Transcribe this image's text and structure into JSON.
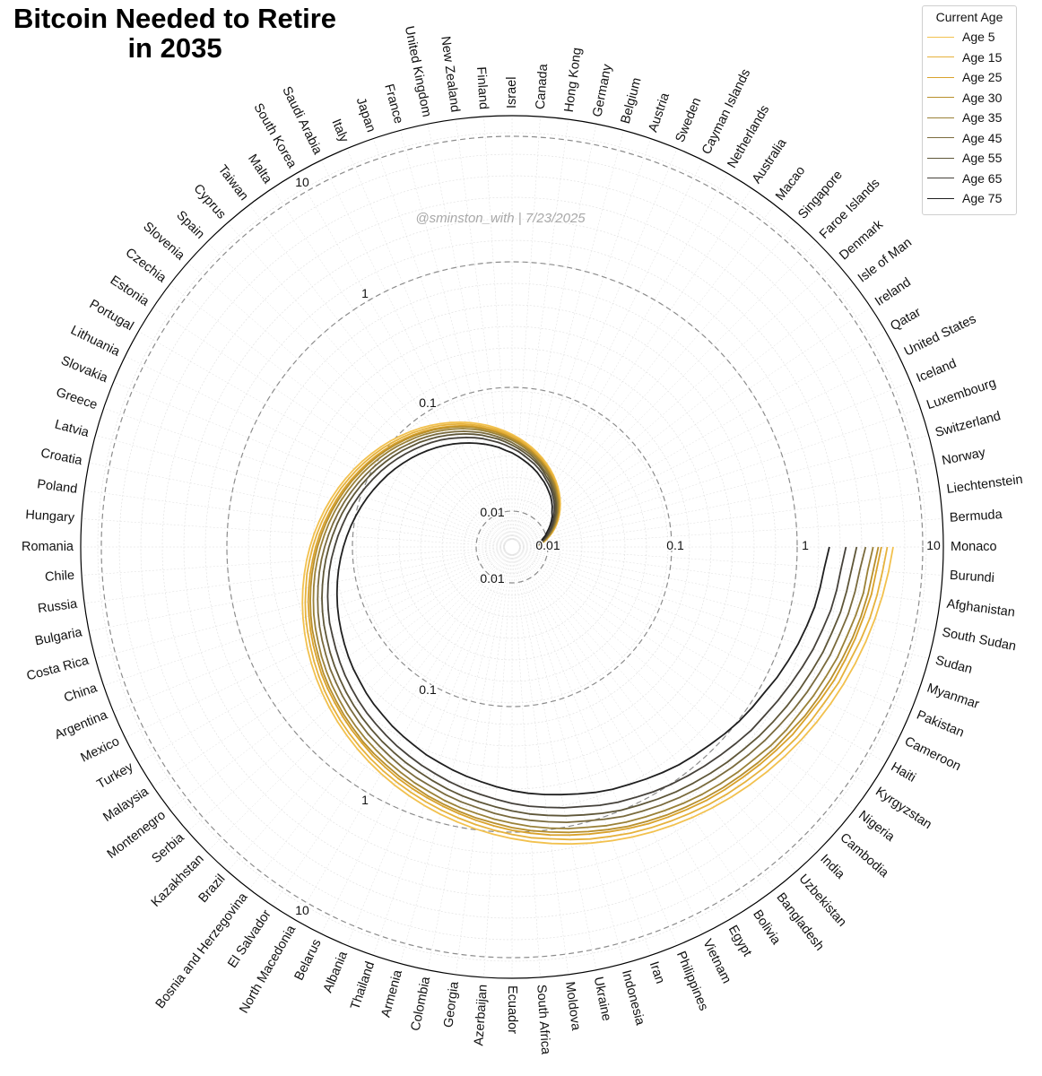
{
  "title_lines": [
    "Bitcoin Needed to Retire",
    "in 2035"
  ],
  "watermark": "@sminston_with  |  7/23/2025",
  "legend_title": "Current Age",
  "colors": {
    "grid_ring": "#8c8c8c",
    "grid_fine": "#dedede",
    "outer_circle": "#000000",
    "watermark": "#a8a8a8"
  },
  "chart_data": {
    "type": "line",
    "projection": "polar-spiral",
    "scale": "log",
    "rlim": [
      0.001,
      30
    ],
    "ring_values": [
      0.01,
      0.1,
      1,
      10
    ],
    "ring_labels": [
      "0.01",
      "0.1",
      "1",
      "10"
    ],
    "categories": [
      "Monaco",
      "Bermuda",
      "Liechtenstein",
      "Norway",
      "Switzerland",
      "Luxembourg",
      "Iceland",
      "United States",
      "Qatar",
      "Ireland",
      "Isle of Man",
      "Denmark",
      "Faroe Islands",
      "Singapore",
      "Macao",
      "Australia",
      "Netherlands",
      "Cayman Islands",
      "Sweden",
      "Austria",
      "Belgium",
      "Germany",
      "Hong Kong",
      "Canada",
      "Israel",
      "Finland",
      "New Zealand",
      "United Kingdom",
      "France",
      "Japan",
      "Italy",
      "Saudi Arabia",
      "South Korea",
      "Malta",
      "Taiwan",
      "Cyprus",
      "Spain",
      "Slovenia",
      "Czechia",
      "Estonia",
      "Portugal",
      "Lithuania",
      "Slovakia",
      "Greece",
      "Latvia",
      "Croatia",
      "Poland",
      "Hungary",
      "Romania",
      "Chile",
      "Russia",
      "Bulgaria",
      "Costa Rica",
      "China",
      "Argentina",
      "Mexico",
      "Turkey",
      "Malaysia",
      "Montenegro",
      "Serbia",
      "Kazakhstan",
      "Brazil",
      "Bosnia and Herzegovina",
      "El Salvador",
      "North Macedonia",
      "Belarus",
      "Albania",
      "Thailand",
      "Armenia",
      "Colombia",
      "Georgia",
      "Azerbaijan",
      "Ecuador",
      "South Africa",
      "Moldova",
      "Ukraine",
      "Indonesia",
      "Iran",
      "Philippines",
      "Vietnam",
      "Egypt",
      "Bolivia",
      "Bangladesh",
      "Uzbekistan",
      "India",
      "Cambodia",
      "Nigeria",
      "Kyrgyzstan",
      "Haiti",
      "Cameroon",
      "Pakistan",
      "Myanmar",
      "Sudan",
      "South Sudan",
      "Afghanistan",
      "Burundi"
    ],
    "series": [
      {
        "name": "Age 5",
        "color": "#f2c14e",
        "values": [
          14.0,
          13.3,
          12.1,
          10.5,
          9.6,
          8.5,
          7.6,
          6.6,
          5.8,
          5.0,
          4.3,
          3.8,
          3.3,
          2.9,
          2.5,
          2.2,
          1.95,
          1.75,
          1.57,
          1.43,
          1.31,
          1.21,
          1.13,
          1.06,
          1.01,
          0.98,
          0.96,
          0.95,
          0.95,
          0.96,
          0.98,
          1.01,
          1.05,
          1.08,
          1.1,
          1.11,
          1.11,
          1.09,
          1.06,
          1.02,
          0.98,
          0.93,
          0.88,
          0.82,
          0.77,
          0.72,
          0.67,
          0.62,
          0.58,
          0.54,
          0.5,
          0.47,
          0.44,
          0.41,
          0.39,
          0.37,
          0.35,
          0.33,
          0.31,
          0.29,
          0.27,
          0.255,
          0.24,
          0.225,
          0.21,
          0.195,
          0.18,
          0.168,
          0.156,
          0.144,
          0.132,
          0.122,
          0.112,
          0.104,
          0.096,
          0.089,
          0.082,
          0.075,
          0.069,
          0.063,
          0.058,
          0.053,
          0.049,
          0.046,
          0.043,
          0.041,
          0.038,
          0.035,
          0.032,
          0.029,
          0.026,
          0.023,
          0.02,
          0.017,
          0.014,
          0.011
        ]
      },
      {
        "name": "Age 15",
        "color": "#e6b23c",
        "values": [
          13.4,
          12.7,
          11.6,
          10.1,
          9.2,
          8.1,
          7.3,
          6.3,
          5.55,
          4.8,
          4.12,
          3.64,
          3.16,
          2.78,
          2.4,
          2.11,
          1.87,
          1.68,
          1.51,
          1.37,
          1.26,
          1.16,
          1.08,
          1.02,
          0.97,
          0.94,
          0.92,
          0.91,
          0.91,
          0.92,
          0.94,
          0.97,
          1.01,
          1.04,
          1.06,
          1.07,
          1.07,
          1.05,
          1.02,
          0.98,
          0.94,
          0.89,
          0.845,
          0.79,
          0.74,
          0.69,
          0.645,
          0.595,
          0.557,
          0.518,
          0.48,
          0.451,
          0.422,
          0.394,
          0.374,
          0.355,
          0.336,
          0.317,
          0.298,
          0.278,
          0.259,
          0.245,
          0.23,
          0.216,
          0.202,
          0.187,
          0.173,
          0.161,
          0.15,
          0.138,
          0.127,
          0.117,
          0.108,
          0.1,
          0.092,
          0.085,
          0.079,
          0.072,
          0.066,
          0.06,
          0.056,
          0.051,
          0.047,
          0.044,
          0.041,
          0.039,
          0.036,
          0.034,
          0.031,
          0.028,
          0.025,
          0.022,
          0.019,
          0.016,
          0.013,
          0.011
        ]
      },
      {
        "name": "Age 25",
        "color": "#d9a22b",
        "values": [
          12.8,
          12.1,
          11.1,
          9.6,
          8.8,
          7.8,
          7.0,
          6.05,
          5.3,
          4.6,
          3.94,
          3.48,
          3.02,
          2.66,
          2.3,
          2.02,
          1.79,
          1.61,
          1.44,
          1.31,
          1.2,
          1.11,
          1.04,
          0.975,
          0.93,
          0.9,
          0.88,
          0.87,
          0.87,
          0.88,
          0.9,
          0.93,
          0.965,
          0.995,
          1.01,
          1.02,
          1.02,
          1.0,
          0.975,
          0.94,
          0.9,
          0.855,
          0.81,
          0.755,
          0.71,
          0.662,
          0.617,
          0.57,
          0.534,
          0.497,
          0.46,
          0.432,
          0.405,
          0.377,
          0.359,
          0.34,
          0.322,
          0.304,
          0.285,
          0.267,
          0.248,
          0.235,
          0.221,
          0.207,
          0.193,
          0.179,
          0.166,
          0.155,
          0.144,
          0.132,
          0.122,
          0.112,
          0.103,
          0.096,
          0.088,
          0.082,
          0.075,
          0.069,
          0.063,
          0.058,
          0.053,
          0.049,
          0.045,
          0.042,
          0.04,
          0.038,
          0.035,
          0.032,
          0.03,
          0.027,
          0.024,
          0.021,
          0.018,
          0.016,
          0.013,
          0.01
        ]
      },
      {
        "name": "Age 30",
        "color": "#b88f2c",
        "values": [
          12.5,
          11.8,
          10.8,
          9.4,
          8.6,
          7.6,
          6.8,
          5.9,
          5.2,
          4.45,
          3.85,
          3.4,
          2.95,
          2.6,
          2.24,
          1.97,
          1.75,
          1.57,
          1.41,
          1.28,
          1.17,
          1.08,
          1.01,
          0.95,
          0.905,
          0.875,
          0.86,
          0.85,
          0.85,
          0.86,
          0.875,
          0.905,
          0.94,
          0.97,
          0.99,
          0.995,
          0.995,
          0.975,
          0.95,
          0.915,
          0.875,
          0.83,
          0.79,
          0.735,
          0.69,
          0.645,
          0.6,
          0.555,
          0.52,
          0.484,
          0.448,
          0.421,
          0.394,
          0.367,
          0.35,
          0.331,
          0.314,
          0.296,
          0.278,
          0.26,
          0.242,
          0.229,
          0.215,
          0.202,
          0.188,
          0.175,
          0.162,
          0.151,
          0.14,
          0.129,
          0.118,
          0.109,
          0.1,
          0.093,
          0.086,
          0.08,
          0.073,
          0.067,
          0.062,
          0.056,
          0.052,
          0.048,
          0.044,
          0.041,
          0.039,
          0.037,
          0.034,
          0.031,
          0.029,
          0.026,
          0.023,
          0.021,
          0.018,
          0.015,
          0.013,
          0.01
        ]
      },
      {
        "name": "Age 35",
        "color": "#9a8137",
        "values": [
          12.0,
          11.3,
          10.4,
          9.0,
          8.2,
          7.3,
          6.5,
          5.65,
          4.95,
          4.3,
          3.7,
          3.25,
          2.83,
          2.49,
          2.15,
          1.89,
          1.67,
          1.5,
          1.35,
          1.23,
          1.12,
          1.04,
          0.97,
          0.91,
          0.865,
          0.84,
          0.82,
          0.815,
          0.815,
          0.82,
          0.84,
          0.865,
          0.9,
          0.925,
          0.945,
          0.955,
          0.955,
          0.935,
          0.91,
          0.875,
          0.84,
          0.795,
          0.755,
          0.705,
          0.66,
          0.617,
          0.575,
          0.532,
          0.497,
          0.463,
          0.429,
          0.403,
          0.377,
          0.351,
          0.334,
          0.317,
          0.3,
          0.283,
          0.266,
          0.249,
          0.231,
          0.219,
          0.206,
          0.193,
          0.18,
          0.167,
          0.155,
          0.144,
          0.134,
          0.123,
          0.113,
          0.104,
          0.096,
          0.089,
          0.082,
          0.076,
          0.07,
          0.064,
          0.059,
          0.054,
          0.05,
          0.046,
          0.042,
          0.039,
          0.037,
          0.035,
          0.033,
          0.03,
          0.027,
          0.025,
          0.022,
          0.02,
          0.017,
          0.015,
          0.012,
          0.01
        ]
      },
      {
        "name": "Age 45",
        "color": "#7a6b3d",
        "values": [
          11.3,
          10.6,
          9.7,
          8.45,
          7.7,
          6.85,
          6.1,
          5.3,
          4.65,
          4.0,
          3.45,
          3.05,
          2.65,
          2.33,
          2.01,
          1.77,
          1.57,
          1.41,
          1.27,
          1.15,
          1.05,
          0.975,
          0.91,
          0.855,
          0.815,
          0.79,
          0.77,
          0.765,
          0.765,
          0.77,
          0.79,
          0.815,
          0.845,
          0.87,
          0.89,
          0.895,
          0.895,
          0.88,
          0.855,
          0.825,
          0.79,
          0.75,
          0.71,
          0.662,
          0.62,
          0.58,
          0.54,
          0.5,
          0.467,
          0.435,
          0.403,
          0.379,
          0.355,
          0.33,
          0.314,
          0.298,
          0.282,
          0.266,
          0.25,
          0.234,
          0.217,
          0.206,
          0.194,
          0.182,
          0.169,
          0.157,
          0.145,
          0.135,
          0.126,
          0.116,
          0.106,
          0.098,
          0.09,
          0.083,
          0.077,
          0.072,
          0.066,
          0.06,
          0.055,
          0.051,
          0.047,
          0.043,
          0.04,
          0.037,
          0.035,
          0.033,
          0.031,
          0.028,
          0.026,
          0.023,
          0.021,
          0.018,
          0.016,
          0.014,
          0.012,
          0.009
        ]
      },
      {
        "name": "Age 55",
        "color": "#5e5638",
        "values": [
          10.5,
          9.9,
          9.05,
          7.9,
          7.2,
          6.4,
          5.7,
          4.95,
          4.35,
          3.75,
          3.23,
          2.85,
          2.48,
          2.18,
          1.88,
          1.66,
          1.47,
          1.32,
          1.19,
          1.08,
          0.985,
          0.91,
          0.85,
          0.8,
          0.76,
          0.735,
          0.72,
          0.715,
          0.715,
          0.72,
          0.735,
          0.76,
          0.79,
          0.815,
          0.83,
          0.84,
          0.84,
          0.825,
          0.8,
          0.77,
          0.74,
          0.7,
          0.665,
          0.62,
          0.582,
          0.543,
          0.506,
          0.468,
          0.437,
          0.407,
          0.377,
          0.355,
          0.332,
          0.309,
          0.294,
          0.279,
          0.264,
          0.249,
          0.234,
          0.219,
          0.203,
          0.193,
          0.181,
          0.17,
          0.158,
          0.147,
          0.136,
          0.127,
          0.118,
          0.108,
          0.1,
          0.092,
          0.084,
          0.078,
          0.072,
          0.067,
          0.062,
          0.057,
          0.052,
          0.047,
          0.044,
          0.04,
          0.037,
          0.035,
          0.033,
          0.031,
          0.029,
          0.026,
          0.024,
          0.022,
          0.019,
          0.017,
          0.015,
          0.013,
          0.011,
          0.009
        ]
      },
      {
        "name": "Age 65",
        "color": "#45413a",
        "values": [
          9.6,
          9.05,
          8.3,
          7.25,
          6.6,
          5.85,
          5.2,
          4.5,
          3.95,
          3.4,
          2.95,
          2.6,
          2.26,
          1.99,
          1.72,
          1.52,
          1.35,
          1.21,
          1.09,
          0.99,
          0.9,
          0.835,
          0.78,
          0.735,
          0.7,
          0.675,
          0.66,
          0.655,
          0.655,
          0.66,
          0.675,
          0.695,
          0.725,
          0.745,
          0.76,
          0.77,
          0.77,
          0.755,
          0.735,
          0.705,
          0.675,
          0.64,
          0.61,
          0.568,
          0.533,
          0.498,
          0.464,
          0.429,
          0.4,
          0.373,
          0.345,
          0.325,
          0.304,
          0.283,
          0.269,
          0.255,
          0.242,
          0.228,
          0.214,
          0.2,
          0.186,
          0.176,
          0.166,
          0.156,
          0.145,
          0.134,
          0.124,
          0.116,
          0.108,
          0.099,
          0.091,
          0.084,
          0.077,
          0.072,
          0.066,
          0.061,
          0.057,
          0.052,
          0.048,
          0.043,
          0.04,
          0.037,
          0.034,
          0.032,
          0.03,
          0.028,
          0.026,
          0.024,
          0.022,
          0.02,
          0.018,
          0.016,
          0.014,
          0.012,
          0.01,
          0.009
        ]
      },
      {
        "name": "Age 75",
        "color": "#1f1f1f",
        "values": [
          8.3,
          7.8,
          7.15,
          6.25,
          5.7,
          5.05,
          4.5,
          3.9,
          3.4,
          2.95,
          2.55,
          2.25,
          1.95,
          1.72,
          1.49,
          1.31,
          1.16,
          1.04,
          0.94,
          0.855,
          0.78,
          0.72,
          0.675,
          0.635,
          0.605,
          0.585,
          0.57,
          0.565,
          0.565,
          0.57,
          0.585,
          0.6,
          0.625,
          0.645,
          0.655,
          0.665,
          0.665,
          0.65,
          0.635,
          0.61,
          0.585,
          0.555,
          0.525,
          0.49,
          0.46,
          0.43,
          0.4,
          0.37,
          0.346,
          0.322,
          0.298,
          0.28,
          0.262,
          0.244,
          0.232,
          0.22,
          0.209,
          0.197,
          0.185,
          0.173,
          0.161,
          0.152,
          0.143,
          0.134,
          0.125,
          0.116,
          0.107,
          0.1,
          0.093,
          0.086,
          0.079,
          0.072,
          0.067,
          0.062,
          0.057,
          0.053,
          0.049,
          0.045,
          0.041,
          0.038,
          0.035,
          0.032,
          0.03,
          0.028,
          0.026,
          0.024,
          0.023,
          0.021,
          0.019,
          0.017,
          0.015,
          0.014,
          0.012,
          0.011,
          0.009,
          0.008
        ]
      }
    ]
  }
}
